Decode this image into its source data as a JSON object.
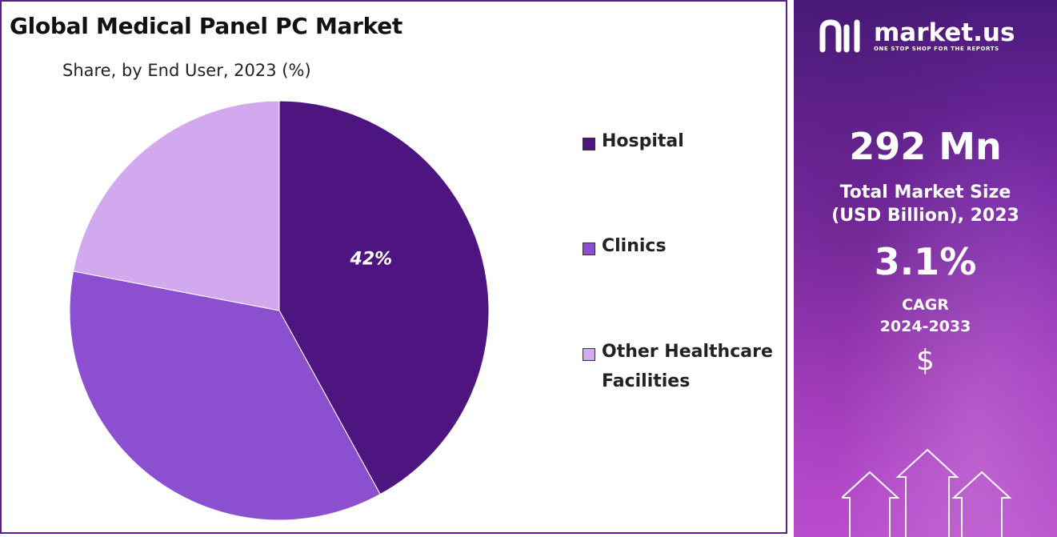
{
  "header": {
    "title": "Global Medical Panel PC Market",
    "subtitle": "Share, by End User, 2023 (%)"
  },
  "chart_data": {
    "type": "pie",
    "title": "Global Medical Panel PC Market",
    "subtitle": "Share, by End User, 2023 (%)",
    "categories": [
      "Hospital",
      "Clinics",
      "Other Healthcare Facilities"
    ],
    "values": [
      42,
      36,
      22
    ],
    "colors": [
      "#4e1580",
      "#8b4fd0",
      "#d2a8ef"
    ],
    "data_labels": [
      "42%",
      "",
      ""
    ],
    "legend": [
      {
        "line1": "Hospital",
        "line2": "",
        "color": "#4e1580"
      },
      {
        "line1": "Clinics",
        "line2": "",
        "color": "#8b4fd0"
      },
      {
        "line1": "Other Healthcare",
        "line2": "Facilities",
        "color": "#d2a8ef"
      }
    ],
    "legend_position": "right"
  },
  "sidebar": {
    "brand_name": "market.us",
    "brand_tagline": "ONE STOP SHOP FOR THE REPORTS",
    "market_size_value": "292 Mn",
    "market_size_label_1": "Total Market Size",
    "market_size_label_2": "(USD Billion), 2023",
    "cagr_value": "3.1%",
    "cagr_label_1": "CAGR",
    "cagr_label_2": "2024-2033",
    "currency_symbol": "$",
    "accent_color": "#7a2aa8"
  }
}
